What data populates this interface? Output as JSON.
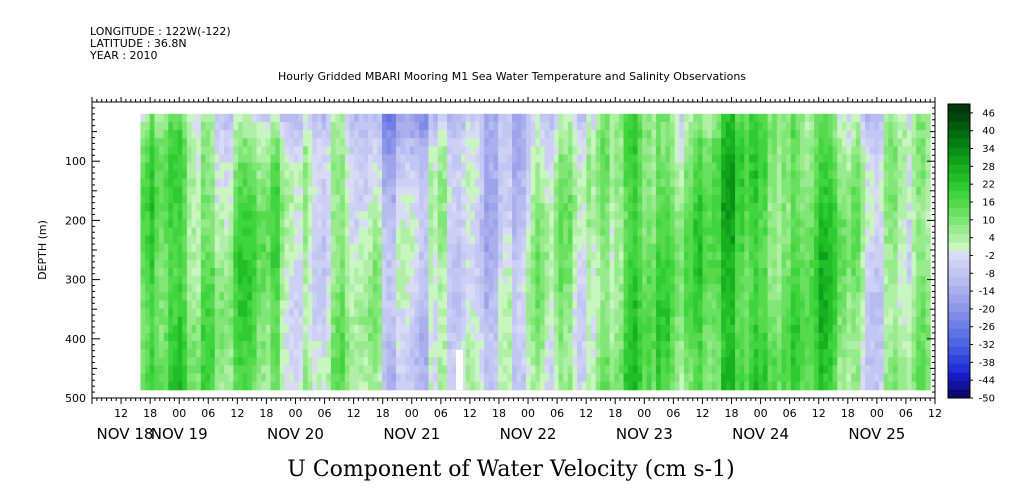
{
  "header": {
    "longitude": "LONGITUDE : 122W(-122)",
    "latitude": "LATITUDE : 36.8N",
    "year": "YEAR : 2010",
    "title": "Hourly Gridded MBARI Mooring M1 Sea Water Temperature and Salinity Observations"
  },
  "chart_data": {
    "type": "heatmap",
    "title": "U Component of Water Velocity (cm s-1)",
    "ylabel": "DEPTH (m)",
    "xlabel": "",
    "x_start": "2010-11-18 06:00",
    "x_end": "2010-11-25 12:00",
    "x_hour_ticks": [
      "12",
      "18",
      "00",
      "06",
      "12",
      "18",
      "00",
      "06",
      "12",
      "18",
      "00",
      "06",
      "12",
      "18",
      "00",
      "06",
      "12",
      "18",
      "00",
      "06",
      "12",
      "18",
      "00",
      "06",
      "12",
      "18",
      "00",
      "06",
      "12",
      "18",
      "00",
      "06"
    ],
    "x_day_labels": [
      "NOV 18",
      "NOV 19",
      "NOV 20",
      "NOV 21",
      "NOV 22",
      "NOV 23",
      "NOV 24",
      "NOV 25"
    ],
    "yticks": [
      100,
      200,
      300,
      400,
      500
    ],
    "ylim": [
      500,
      0
    ],
    "depth_range": [
      20,
      486
    ],
    "data_start": "2010-11-18 16:00",
    "data_end": "2010-11-25 11:00",
    "colorbar": {
      "labels": [
        "46",
        "40",
        "34",
        "28",
        "22",
        "16",
        "10",
        "4",
        "-2",
        "-8",
        "-14",
        "-20",
        "-26",
        "-32",
        "-38",
        "-44",
        "-50"
      ],
      "min": -50,
      "max": 49,
      "step": 3,
      "neg_colors": [
        "#0a0a6e",
        "#12129a",
        "#1a1ac4",
        "#2431d8",
        "#3044dc",
        "#3f56e0",
        "#4f66e2",
        "#6072e4",
        "#707ee6",
        "#7f8be8",
        "#8e98ea",
        "#9ca4ec",
        "#aab0ee",
        "#b6bcf0",
        "#c2c6f2",
        "#cdd0f4",
        "#d8daf6"
      ],
      "pos_colors": [
        "#c8f5c0",
        "#b0f0a6",
        "#98eb8c",
        "#80e676",
        "#6ae060",
        "#55da4e",
        "#40d43e",
        "#30ca32",
        "#22be28",
        "#18b020",
        "#10a01a",
        "#0a9016",
        "#067e12",
        "#046c10",
        "#035a0e",
        "#02480c",
        "#02380a"
      ]
    },
    "annotations": [
      "white gap near NOV 21 11:00 below 420 m"
    ]
  }
}
